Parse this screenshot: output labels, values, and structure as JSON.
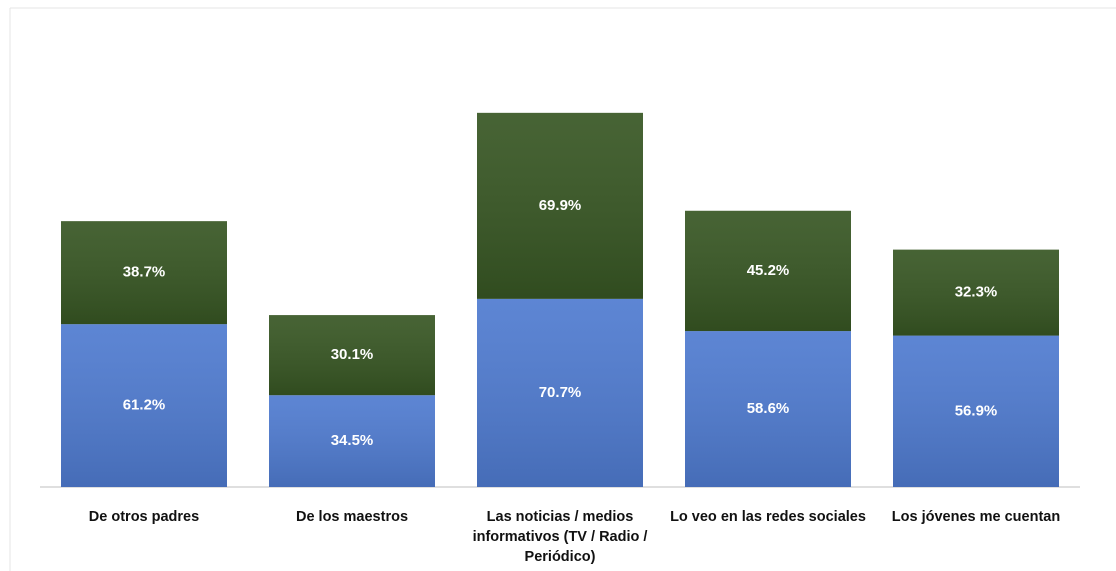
{
  "chart_data": {
    "type": "stacked-bar",
    "categories": [
      "De otros padres",
      "De los maestros",
      "Las noticias / medios informativos (TV / Radio / Periódico)",
      "Lo veo en las redes sociales",
      "Los jóvenes me cuentan"
    ],
    "series": [
      {
        "color": "#4f7bd0",
        "values": [
          61.2,
          34.5,
          70.7,
          58.6,
          56.9
        ],
        "value_labels": [
          "61.2%",
          "34.5%",
          "70.7%",
          "58.6%",
          "56.9%"
        ]
      },
      {
        "color": "#375623",
        "values": [
          38.7,
          30.1,
          69.9,
          45.2,
          32.3
        ],
        "value_labels": [
          "38.7%",
          "30.1%",
          "69.9%",
          "45.2%",
          "32.3%"
        ]
      }
    ],
    "ylim": [
      0,
      180
    ]
  }
}
